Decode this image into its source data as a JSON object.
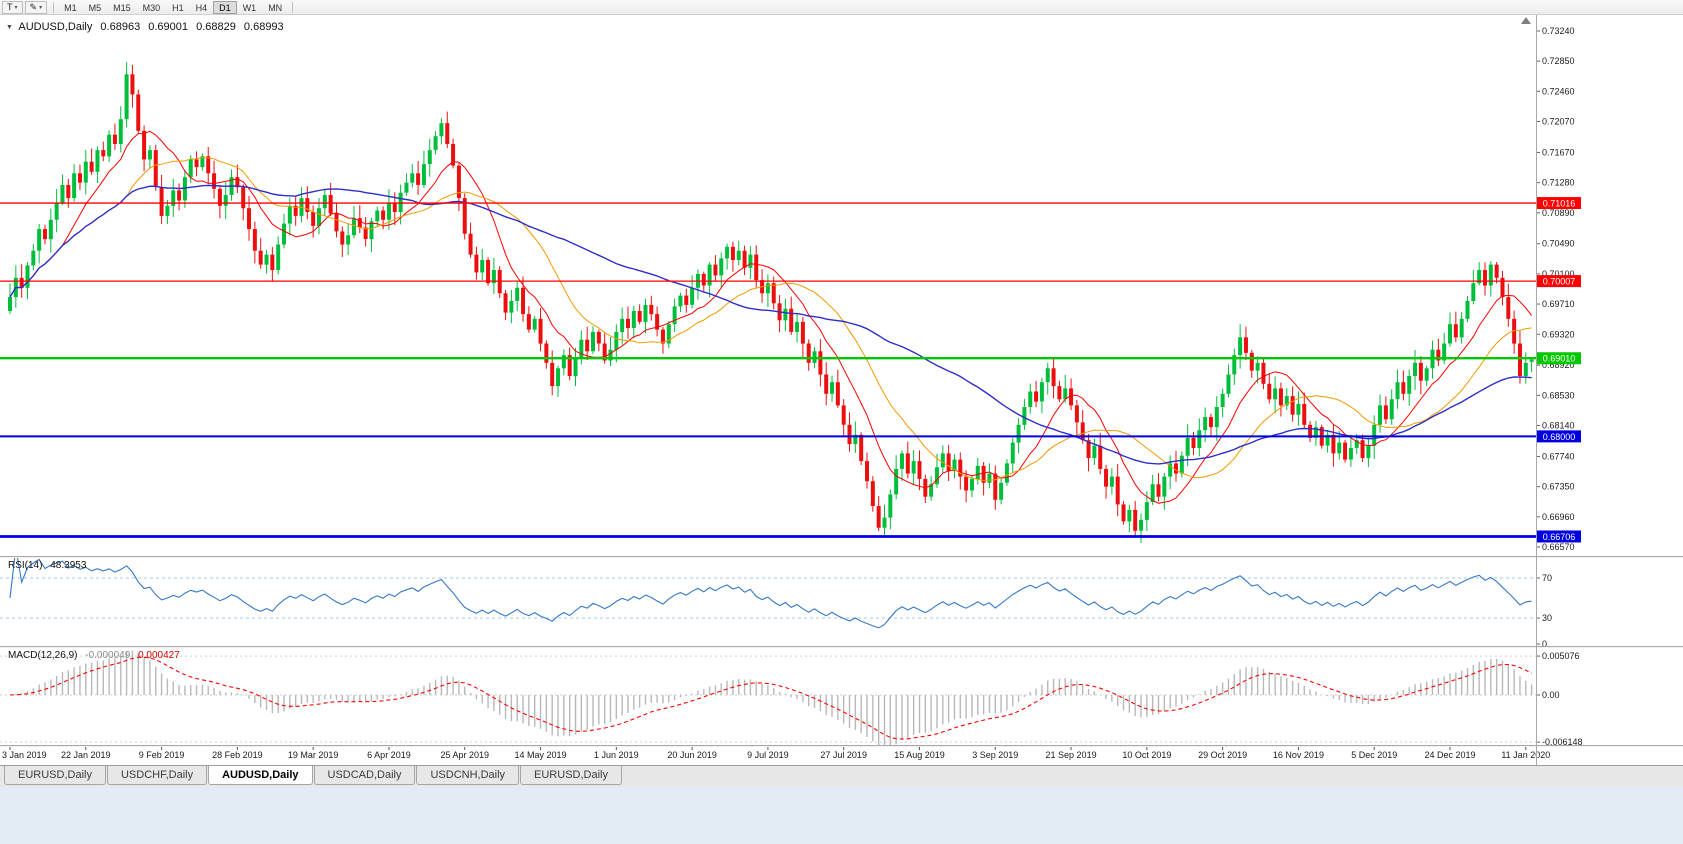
{
  "icons": {
    "one_click": "▼",
    "caret": "▾",
    "draw_tool": "✎"
  },
  "toolbar": {
    "t_label": "T",
    "timeframes": [
      "M1",
      "M5",
      "M15",
      "M30",
      "H1",
      "H4",
      "D1",
      "W1",
      "MN"
    ],
    "active_timeframe": "D1"
  },
  "chart": {
    "title": {
      "symbol": "AUDUSD,Daily",
      "open": "0.68963",
      "high": "0.69001",
      "low": "0.68829",
      "close": "0.68993"
    },
    "price_scale": {
      "ticks": [
        "0.73240",
        "0.72850",
        "0.72460",
        "0.72070",
        "0.71670",
        "0.71280",
        "0.70890",
        "0.70490",
        "0.70100",
        "0.69710",
        "0.69320",
        "0.68920",
        "0.68530",
        "0.68140",
        "0.67740",
        "0.67350",
        "0.66960",
        "0.66570"
      ]
    },
    "levels": [
      {
        "price": 0.71016,
        "label": "0.71016",
        "color": "#FF0000",
        "width": 1.3
      },
      {
        "price": 0.70007,
        "label": "0.70007",
        "color": "#FF0000",
        "width": 1.3
      },
      {
        "price": 0.6901,
        "label": "0.69010",
        "color": "#00C800",
        "width": 2.4
      },
      {
        "price": 0.68,
        "label": "0.68000",
        "color": "#0000E0",
        "width": 2.0
      },
      {
        "price": 0.66706,
        "label": "0.66706",
        "color": "#0000E0",
        "width": 2.8
      }
    ],
    "date_axis": [
      "3 Jan 2019",
      "22 Jan 2019",
      "9 Feb 2019",
      "28 Feb 2019",
      "19 Mar 2019",
      "6 Apr 2019",
      "25 Apr 2019",
      "14 May 2019",
      "1 Jun 2019",
      "20 Jun 2019",
      "9 Jul 2019",
      "27 Jul 2019",
      "15 Aug 2019",
      "3 Sep 2019",
      "21 Sep 2019",
      "10 Oct 2019",
      "29 Oct 2019",
      "16 Nov 2019",
      "5 Dec 2019",
      "24 Dec 2019",
      "11 Jan 2020"
    ]
  },
  "rsi": {
    "label": "RSI(14)",
    "value": "48.3953",
    "scale": [
      "70",
      "30",
      "0"
    ]
  },
  "macd": {
    "label": "MACD(12,26,9)",
    "main_value": "-0.000049",
    "signal_value": "0.000427",
    "scale_top": "0.005076",
    "scale_zero": "0.00",
    "scale_bottom": "-0.006148"
  },
  "tabs": [
    {
      "label": "EURUSD,Daily",
      "active": false
    },
    {
      "label": "USDCHF,Daily",
      "active": false
    },
    {
      "label": "AUDUSD,Daily",
      "active": true
    },
    {
      "label": "USDCAD,Daily",
      "active": false
    },
    {
      "label": "USDCNH,Daily",
      "active": false
    },
    {
      "label": "EURUSD,Daily",
      "active": false
    }
  ],
  "colors": {
    "bull": "#00BE3C",
    "bear": "#EC0F0F",
    "ma_fast": "#FF0000",
    "ma_mid": "#F29A00",
    "ma_slow": "#2E2EC8",
    "rsi_line": "#3579C8",
    "rsi_level": "#A6C9E8",
    "macd_hist": "#B8B8B8",
    "macd_signal": "#FF0000",
    "badge_text": "#FFFFFF",
    "scale_text": "#1A1A1A"
  },
  "chart_data": {
    "type": "candlestick",
    "symbol": "AUDUSD",
    "timeframe": "Daily",
    "title": "AUDUSD,Daily 0.68963 0.69001 0.68829 0.68993",
    "last_candle": {
      "open": 0.68963,
      "high": 0.69001,
      "low": 0.68829,
      "close": 0.68993
    },
    "price_range": [
      0.6657,
      0.7324
    ],
    "date_range": [
      "3 Jan 2019",
      "11 Jan 2020"
    ],
    "support_resistance": [
      0.71016,
      0.70007,
      0.6901,
      0.68,
      0.66706
    ],
    "ma_periods": [
      10,
      21,
      50
    ],
    "rsi": {
      "period": 14,
      "last": 48.3953,
      "levels": [
        70,
        30
      ]
    },
    "macd": {
      "fast": 12,
      "slow": 26,
      "signal": 9,
      "last_main": -4.9e-05,
      "last_signal": 0.000427
    },
    "closes": [
      0.698,
      0.7005,
      0.6992,
      0.7021,
      0.704,
      0.7068,
      0.7055,
      0.708,
      0.7102,
      0.7125,
      0.7108,
      0.714,
      0.7128,
      0.7155,
      0.7142,
      0.717,
      0.7162,
      0.719,
      0.7178,
      0.721,
      0.7268,
      0.7242,
      0.7195,
      0.7158,
      0.717,
      0.7122,
      0.7085,
      0.7098,
      0.7118,
      0.7105,
      0.7135,
      0.7158,
      0.7148,
      0.7162,
      0.714,
      0.712,
      0.7098,
      0.7112,
      0.7135,
      0.7122,
      0.7095,
      0.7068,
      0.704,
      0.7022,
      0.7035,
      0.7015,
      0.7048,
      0.7075,
      0.7098,
      0.7085,
      0.7108,
      0.709,
      0.7072,
      0.7095,
      0.7112,
      0.7088,
      0.7065,
      0.7048,
      0.706,
      0.7082,
      0.707,
      0.7055,
      0.7078,
      0.7092,
      0.708,
      0.7102,
      0.709,
      0.7115,
      0.7128,
      0.714,
      0.7125,
      0.7152,
      0.717,
      0.7188,
      0.7205,
      0.7178,
      0.715,
      0.7108,
      0.7062,
      0.7035,
      0.7012,
      0.7028,
      0.6998,
      0.7015,
      0.6985,
      0.696,
      0.6975,
      0.6992,
      0.6958,
      0.6938,
      0.6952,
      0.692,
      0.6895,
      0.6865,
      0.6888,
      0.6905,
      0.6878,
      0.6902,
      0.6925,
      0.691,
      0.6935,
      0.692,
      0.6898,
      0.6912,
      0.6935,
      0.6952,
      0.694,
      0.6962,
      0.6948,
      0.697,
      0.6958,
      0.6938,
      0.692,
      0.6945,
      0.6968,
      0.6982,
      0.697,
      0.6992,
      0.701,
      0.6995,
      0.7022,
      0.7008,
      0.703,
      0.7045,
      0.7028,
      0.704,
      0.7018,
      0.7035,
      0.7002,
      0.6985,
      0.6998,
      0.6972,
      0.695,
      0.6965,
      0.6935,
      0.6948,
      0.692,
      0.6895,
      0.691,
      0.688,
      0.6855,
      0.687,
      0.684,
      0.6815,
      0.679,
      0.6802,
      0.6768,
      0.6742,
      0.671,
      0.6682,
      0.6695,
      0.6725,
      0.6758,
      0.6778,
      0.6752,
      0.6768,
      0.6745,
      0.6722,
      0.6738,
      0.676,
      0.6778,
      0.6755,
      0.677,
      0.6748,
      0.673,
      0.6745,
      0.6762,
      0.674,
      0.6752,
      0.6718,
      0.674,
      0.6765,
      0.6792,
      0.6815,
      0.6838,
      0.6858,
      0.6845,
      0.687,
      0.6888,
      0.6865,
      0.6848,
      0.6862,
      0.684,
      0.6818,
      0.6795,
      0.6772,
      0.6788,
      0.6758,
      0.6735,
      0.6748,
      0.6712,
      0.669,
      0.6705,
      0.6678,
      0.6692,
      0.6715,
      0.6738,
      0.6722,
      0.6748,
      0.6765,
      0.6752,
      0.6775,
      0.6798,
      0.6785,
      0.6808,
      0.6825,
      0.6812,
      0.6838,
      0.6855,
      0.688,
      0.6905,
      0.6928,
      0.6908,
      0.6885,
      0.6895,
      0.6868,
      0.6848,
      0.6862,
      0.684,
      0.6852,
      0.6828,
      0.6842,
      0.6815,
      0.6798,
      0.6812,
      0.6788,
      0.6802,
      0.6778,
      0.6792,
      0.677,
      0.6785,
      0.6795,
      0.6772,
      0.6788,
      0.6815,
      0.684,
      0.6822,
      0.6848,
      0.687,
      0.6855,
      0.6878,
      0.6895,
      0.6872,
      0.6888,
      0.6912,
      0.6898,
      0.692,
      0.6945,
      0.6928,
      0.6952,
      0.6975,
      0.6998,
      0.7015,
      0.6995,
      0.7022,
      0.7005,
      0.698,
      0.6952,
      0.692,
      0.6878,
      0.6895,
      0.68993
    ]
  }
}
